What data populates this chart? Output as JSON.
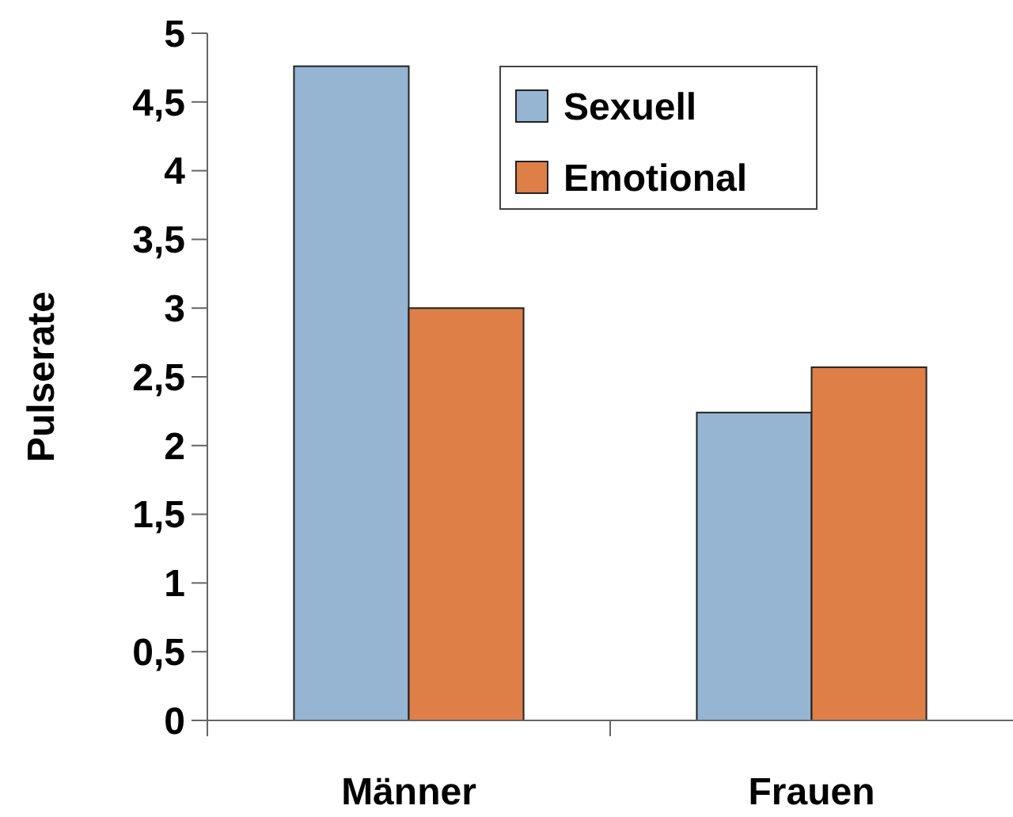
{
  "chart_data": {
    "type": "bar",
    "ylabel": "Pulserate",
    "categories": [
      "Männer",
      "Frauen"
    ],
    "series": [
      {
        "name": "Sexuell",
        "color": "#95b5d2",
        "values": [
          4.76,
          2.24
        ]
      },
      {
        "name": "Emotional",
        "color": "#de7f47",
        "values": [
          3.0,
          2.57
        ]
      }
    ],
    "ylim": [
      0,
      5
    ],
    "yticks": [
      0,
      {
        "value": 0.5,
        "label": "0,5"
      },
      1,
      {
        "value": 1.5,
        "label": "1,5"
      },
      2,
      {
        "value": 2.5,
        "label": "2,5"
      },
      3,
      {
        "value": 3.5,
        "label": "3,5"
      },
      4,
      {
        "value": 4.5,
        "label": "4,5"
      },
      5
    ],
    "grid": false,
    "legend": "top right"
  }
}
